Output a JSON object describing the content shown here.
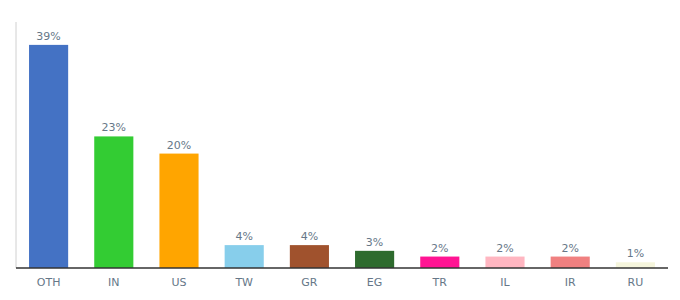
{
  "chart_data": {
    "type": "bar",
    "categories": [
      "OTH",
      "IN",
      "US",
      "TW",
      "GR",
      "EG",
      "TR",
      "IL",
      "IR",
      "RU"
    ],
    "values": [
      39,
      23,
      20,
      4,
      4,
      3,
      2,
      2,
      2,
      1
    ],
    "value_labels": [
      "39%",
      "23%",
      "20%",
      "4%",
      "4%",
      "3%",
      "2%",
      "2%",
      "2%",
      "1%"
    ],
    "colors": [
      "#4472C4",
      "#33CC33",
      "#FFA500",
      "#87CEEB",
      "#A0522D",
      "#2E6B2E",
      "#FF1493",
      "#FFB6C1",
      "#F08080",
      "#F5F5DC"
    ],
    "ylim": [
      0,
      43
    ],
    "grid": false,
    "data_labels": true,
    "tick_labels": "x"
  }
}
